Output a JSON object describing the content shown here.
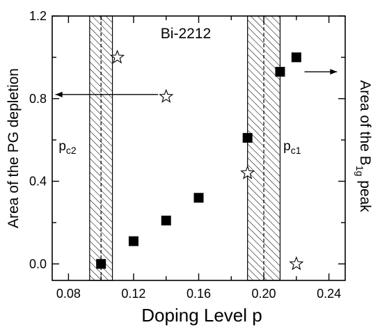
{
  "chart_data": {
    "type": "scatter",
    "title": "Bi-2212",
    "xlabel": "Doping Level p",
    "ylabel_left": "Area of the PG depletion",
    "ylabel_right": "Area of the B",
    "ylabel_right_sub": "1g",
    "ylabel_right_tail": " peak",
    "xlim": [
      0.07,
      0.25
    ],
    "ylim": [
      -0.08,
      1.2
    ],
    "xticks": [
      0.08,
      0.12,
      0.16,
      0.2,
      0.24
    ],
    "xtick_labels": [
      "0.08",
      "0.12",
      "0.16",
      "0.20",
      "0.24"
    ],
    "yticks": [
      0.0,
      0.4,
      0.8,
      1.2
    ],
    "ytick_labels": [
      "0.0",
      "0.4",
      "0.8",
      "1.2"
    ],
    "grid": false,
    "series": [
      {
        "marker": "filled-square",
        "axis": "right",
        "x": [
          0.1,
          0.12,
          0.14,
          0.16,
          0.19,
          0.21,
          0.22
        ],
        "y": [
          0.0,
          0.11,
          0.21,
          0.32,
          0.61,
          0.93,
          1.0
        ]
      },
      {
        "marker": "open-star",
        "axis": "left",
        "x": [
          0.11,
          0.14,
          0.19,
          0.22
        ],
        "y": [
          1.0,
          0.81,
          0.44,
          0.0
        ]
      }
    ],
    "shaded_regions": [
      {
        "x0": 0.093,
        "x1": 0.107,
        "center": 0.1
      },
      {
        "x0": 0.19,
        "x1": 0.21,
        "center": 0.2
      }
    ],
    "annotations": [
      {
        "label": "p",
        "sub": "c2",
        "x": 0.074,
        "y": 0.55
      },
      {
        "label": "p",
        "sub": "c1",
        "x": 0.212,
        "y": 0.55
      }
    ],
    "arrows": [
      {
        "from": [
          0.135,
          0.82
        ],
        "to": [
          0.072,
          0.82
        ],
        "meaning": "left-axis"
      },
      {
        "from": [
          0.225,
          0.93
        ],
        "to": [
          0.245,
          0.93
        ],
        "meaning": "right-axis"
      }
    ]
  }
}
